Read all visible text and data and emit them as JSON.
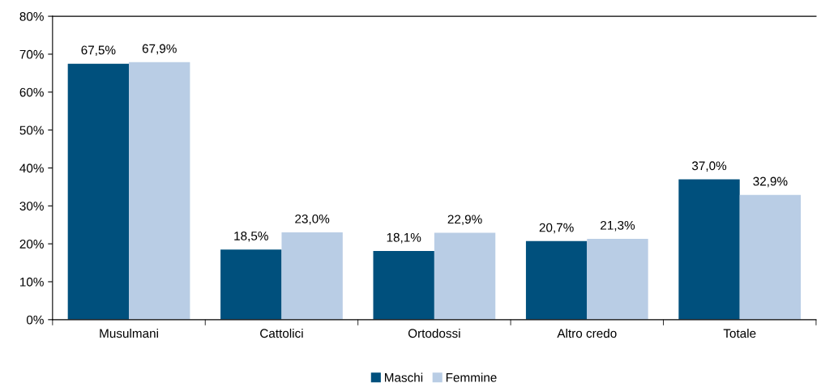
{
  "chart_data": {
    "type": "bar",
    "categories": [
      "Musulmani",
      "Cattolici",
      "Ortodossi",
      "Altro credo",
      "Totale"
    ],
    "series": [
      {
        "name": "Maschi",
        "color": "#00507d",
        "values": [
          67.5,
          18.5,
          18.1,
          20.7,
          37.0
        ],
        "value_labels": [
          "67,5%",
          "18,5%",
          "18,1%",
          "20,7%",
          "37,0%"
        ]
      },
      {
        "name": "Femmine",
        "color": "#b9cde5",
        "values": [
          67.9,
          23.0,
          22.9,
          21.3,
          32.9
        ],
        "value_labels": [
          "67,9%",
          "23,0%",
          "22,9%",
          "21,3%",
          "32,9%"
        ]
      }
    ],
    "ylim": [
      0,
      80
    ],
    "yticks": [
      {
        "value": 0,
        "label": "0%"
      },
      {
        "value": 10,
        "label": "10%"
      },
      {
        "value": 20,
        "label": "20%"
      },
      {
        "value": 30,
        "label": "30%"
      },
      {
        "value": 40,
        "label": "40%"
      },
      {
        "value": 50,
        "label": "50%"
      },
      {
        "value": 60,
        "label": "60%"
      },
      {
        "value": 70,
        "label": "70%"
      },
      {
        "value": 80,
        "label": "80%"
      }
    ],
    "grid": false,
    "legend": "bottom"
  }
}
